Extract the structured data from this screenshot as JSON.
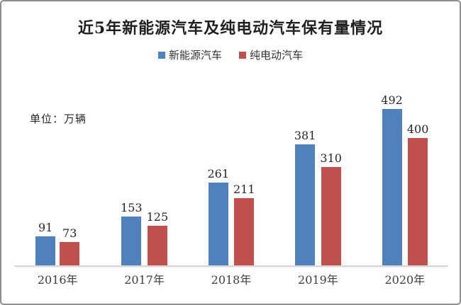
{
  "frame": {
    "border_color": "#8f8f8f",
    "background": "#ffffff"
  },
  "chart_data": {
    "type": "bar",
    "title": "近5年新能源汽车及纯电动汽车保有量情况",
    "unit_label": "单位：万辆",
    "categories": [
      "2016年",
      "2017年",
      "2018年",
      "2019年",
      "2020年"
    ],
    "series": [
      {
        "name": "新能源汽车",
        "color": "#4f81bd",
        "values": [
          91,
          153,
          261,
          381,
          492
        ]
      },
      {
        "name": "纯电动汽车",
        "color": "#c0504d",
        "values": [
          73,
          125,
          211,
          310,
          400
        ]
      }
    ],
    "ylim": [
      0,
      520
    ],
    "grid": false,
    "legend_position": "top-center",
    "value_labels": true,
    "axis_line_color": "#d6d6d6",
    "text_color": "#262626"
  }
}
